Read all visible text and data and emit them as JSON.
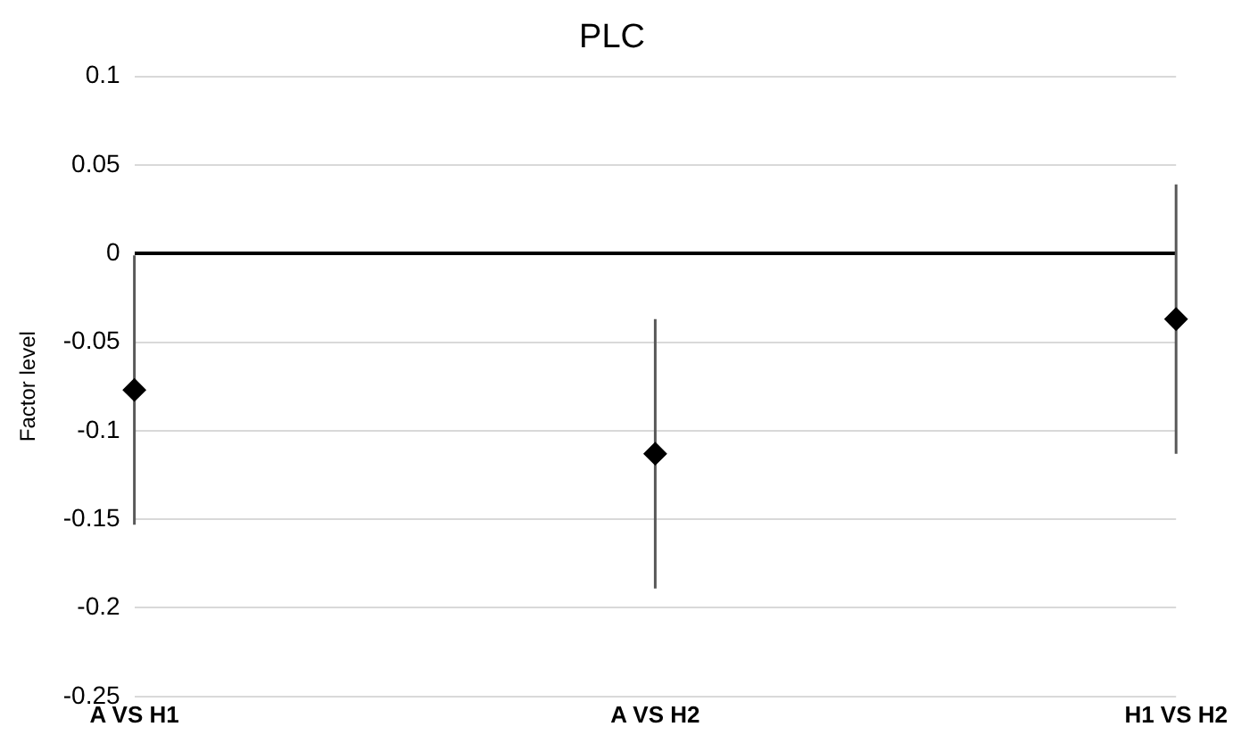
{
  "chart_data": {
    "type": "scatter",
    "title": "PLC",
    "ylabel": "Factor level",
    "categories": [
      "A VS H1",
      "A VS H2",
      "H1 VS H2"
    ],
    "series": [
      {
        "color": "#000000",
        "values": [
          -0.077,
          -0.113,
          -0.037
        ],
        "errors": [
          0.076,
          0.076,
          0.076
        ]
      }
    ],
    "ylim": [
      -0.25,
      0.1
    ],
    "yticks": [
      -0.25,
      -0.2,
      -0.15,
      -0.1,
      -0.05,
      0,
      0.05,
      0.1
    ],
    "grid": "y",
    "legend": false,
    "marker": "diamond"
  }
}
